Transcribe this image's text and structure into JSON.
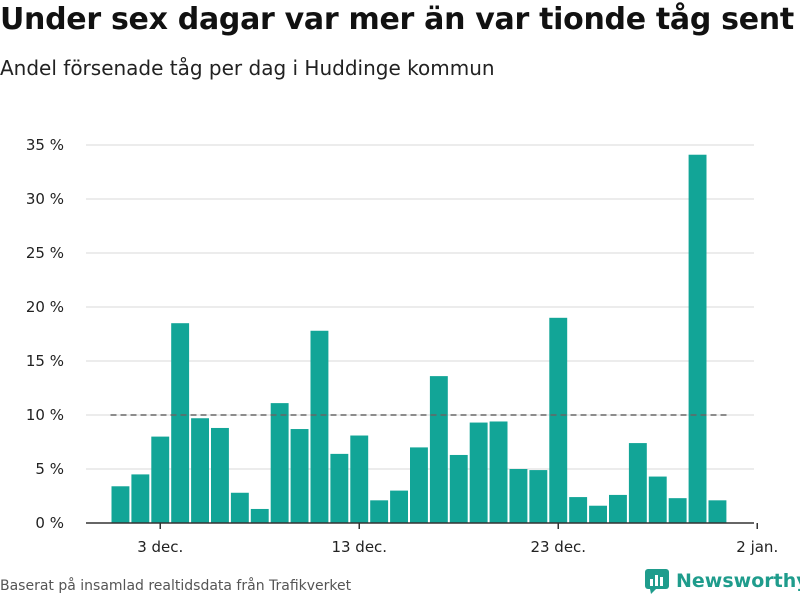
{
  "header": {
    "title": "Under sex dagar var mer än var tionde tåg sent",
    "subtitle": "Andel försenade tåg per dag i Huddinge kommun"
  },
  "footer": {
    "source": "Baserat på insamlad realtidsdata från Trafikverket",
    "brand": "Newsworthy"
  },
  "colors": {
    "bar": "#12a597",
    "grid": "#d9d9d9",
    "reference": "#666666",
    "axis": "#333333",
    "brand": "#1f9c8c"
  },
  "chart_data": {
    "type": "bar",
    "x": [
      "2023-12-01",
      "2023-12-02",
      "2023-12-03",
      "2023-12-04",
      "2023-12-05",
      "2023-12-06",
      "2023-12-07",
      "2023-12-08",
      "2023-12-09",
      "2023-12-10",
      "2023-12-11",
      "2023-12-12",
      "2023-12-13",
      "2023-12-14",
      "2023-12-15",
      "2023-12-16",
      "2023-12-17",
      "2023-12-18",
      "2023-12-19",
      "2023-12-20",
      "2023-12-21",
      "2023-12-22",
      "2023-12-23",
      "2023-12-24",
      "2023-12-25",
      "2023-12-26",
      "2023-12-27",
      "2023-12-28",
      "2023-12-29",
      "2023-12-30",
      "2023-12-31"
    ],
    "values": [
      3.4,
      4.5,
      8.0,
      18.5,
      9.7,
      8.8,
      2.8,
      1.3,
      11.1,
      8.7,
      17.8,
      6.4,
      8.1,
      2.1,
      3.0,
      7.0,
      13.6,
      6.3,
      9.3,
      9.4,
      5.0,
      4.9,
      19.0,
      2.4,
      1.6,
      2.6,
      7.4,
      4.3,
      2.3,
      34.1,
      2.1
    ],
    "ylim": [
      0,
      35
    ],
    "yticks": [
      {
        "value": 0,
        "label": "0 %"
      },
      {
        "value": 5,
        "label": "5 %"
      },
      {
        "value": 10,
        "label": "10 %"
      },
      {
        "value": 15,
        "label": "15 %"
      },
      {
        "value": 20,
        "label": "20 %"
      },
      {
        "value": 25,
        "label": "25 %"
      },
      {
        "value": 30,
        "label": "30 %"
      },
      {
        "value": 35,
        "label": "35 %"
      }
    ],
    "xticks": [
      {
        "date": "2023-12-03",
        "label": "3 dec."
      },
      {
        "date": "2023-12-13",
        "label": "13 dec."
      },
      {
        "date": "2023-12-23",
        "label": "23 dec."
      },
      {
        "date": "2024-01-02",
        "label": "2 jan."
      }
    ],
    "reference_line": 10,
    "grid": true
  }
}
